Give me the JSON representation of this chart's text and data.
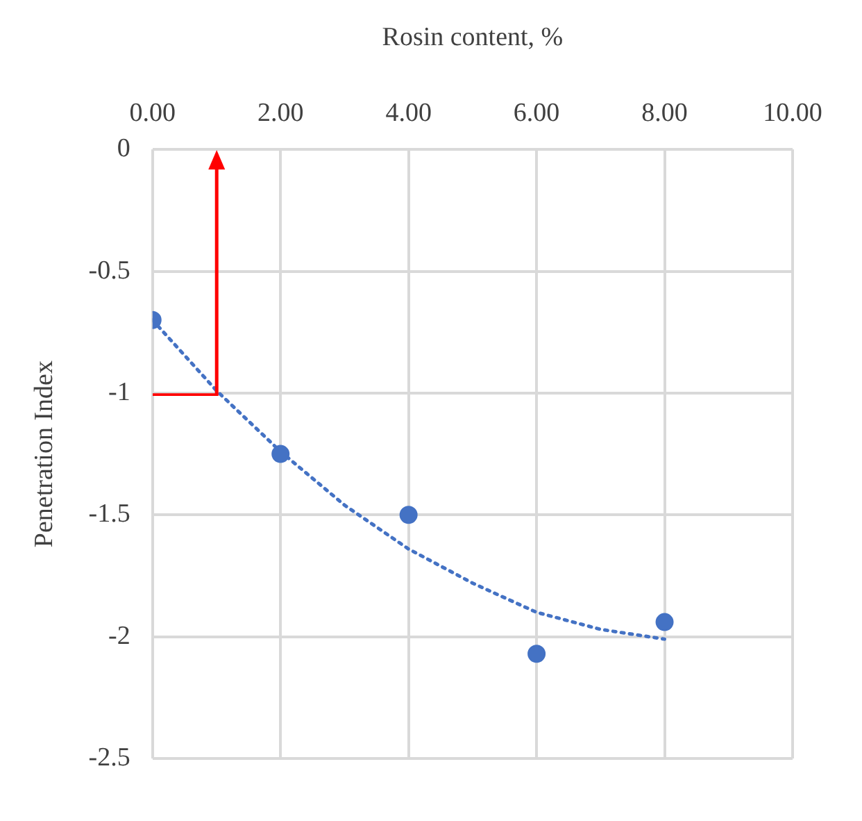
{
  "chart_data": {
    "type": "scatter",
    "xlabel": "Rosin content, %",
    "ylabel": "Penetration Index",
    "xlim": [
      0,
      10
    ],
    "xticks": [
      {
        "value": 0,
        "label": "0.00"
      },
      {
        "value": 2,
        "label": "2.00"
      },
      {
        "value": 4,
        "label": "4.00"
      },
      {
        "value": 6,
        "label": "6.00"
      },
      {
        "value": 8,
        "label": "8.00"
      },
      {
        "value": 10,
        "label": "10.00"
      }
    ],
    "ylim": [
      -2.5,
      0
    ],
    "yticks": [
      -2.5,
      -2,
      -1.5,
      -1,
      -0.5,
      0
    ],
    "grid": true,
    "legend": false,
    "marker": "circle",
    "series": [
      {
        "color": "#4472c4",
        "x": [
          0,
          2,
          4,
          6,
          8
        ],
        "values": [
          -0.7,
          -1.25,
          -1.5,
          -2.07,
          -1.94
        ]
      },
      {
        "type": "line",
        "color": "#4472c4",
        "line_style": "dotted",
        "marker": "none",
        "x": [
          0,
          1,
          2,
          3,
          4,
          5,
          6,
          7,
          8
        ],
        "values": [
          -0.7,
          -0.99,
          -1.24,
          -1.46,
          -1.64,
          -1.78,
          -1.9,
          -1.97,
          -2.01
        ]
      }
    ]
  }
}
